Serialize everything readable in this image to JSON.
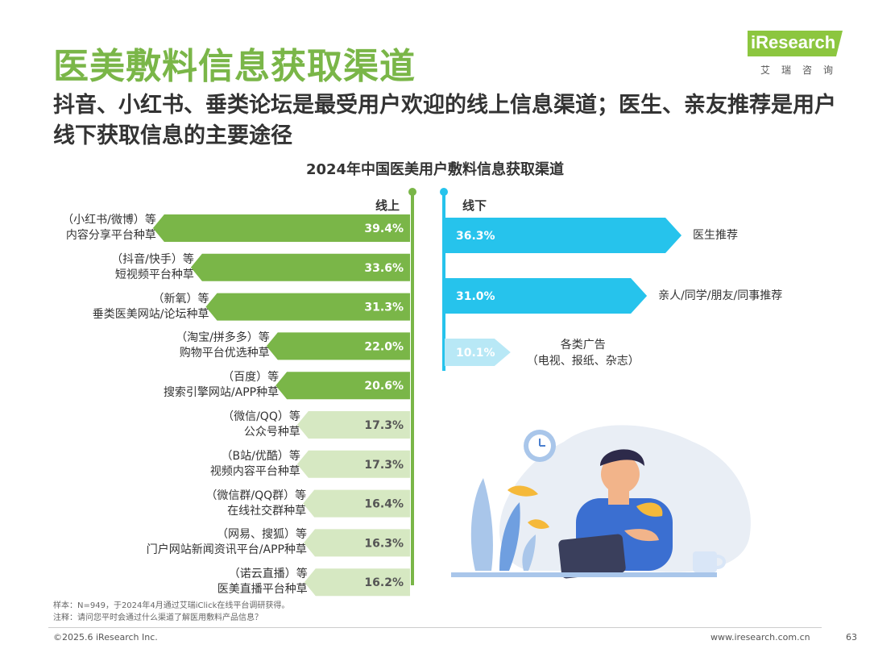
{
  "header": {
    "title": "医美敷料信息获取渠道",
    "subtitle": "抖音、小红书、垂类论坛是最受用户欢迎的线上信息渠道；医生、亲友推荐是用户线下获取信息的主要途径",
    "logo_text": "iResearch",
    "logo_sub": "艾瑞咨询"
  },
  "chart_data": {
    "type": "bar",
    "title": "2024年中国医美用户敷料信息获取渠道",
    "groups": [
      {
        "name": "线上",
        "categories": [
          "（小红书/微博）等\n内容分享平台种草",
          "（抖音/快手）等\n短视频平台种草",
          "（新氧）等\n垂类医美网站/论坛种草",
          "（淘宝/拼多多）等\n购物平台优选种草",
          "（百度）等\n搜索引擎网站/APP种草",
          "（微信/QQ）等\n公众号种草",
          "（B站/优酷）等\n视频内容平台种草",
          "（微信群/QQ群）等\n在线社交群种草",
          "（网易、搜狐）等\n门户网站新闻资讯平台/APP种草",
          "（诺云直播）等\n医美直播平台种草"
        ],
        "values": [
          39.4,
          33.6,
          31.3,
          22.0,
          20.6,
          17.3,
          17.3,
          16.4,
          16.3,
          16.2
        ],
        "labels": [
          "39.4%",
          "33.6%",
          "31.3%",
          "22.0%",
          "20.6%",
          "17.3%",
          "17.3%",
          "16.4%",
          "16.3%",
          "16.2%"
        ]
      },
      {
        "name": "线下",
        "categories": [
          "医生推荐",
          "亲人/同学/朋友/同事推荐",
          "各类广告\n（电视、报纸、杂志）"
        ],
        "values": [
          36.3,
          31.0,
          10.1
        ],
        "labels": [
          "36.3%",
          "31.0%",
          "10.1%"
        ]
      }
    ]
  },
  "footnotes": {
    "sample": "样本：N=949，于2024年4月通过艾瑞iClick在线平台调研获得。",
    "note": "注释：请问您平时会通过什么渠道了解医用敷料产品信息？"
  },
  "footer": {
    "copyright": "©2025.6 iResearch Inc.",
    "site": "www.iresearch.com.cn",
    "page": "63"
  },
  "colors": {
    "green_dark": "#7ab648",
    "green_light": "#d6e8c2",
    "blue_dark": "#26c3ec",
    "blue_light": "#b8e8f6"
  }
}
